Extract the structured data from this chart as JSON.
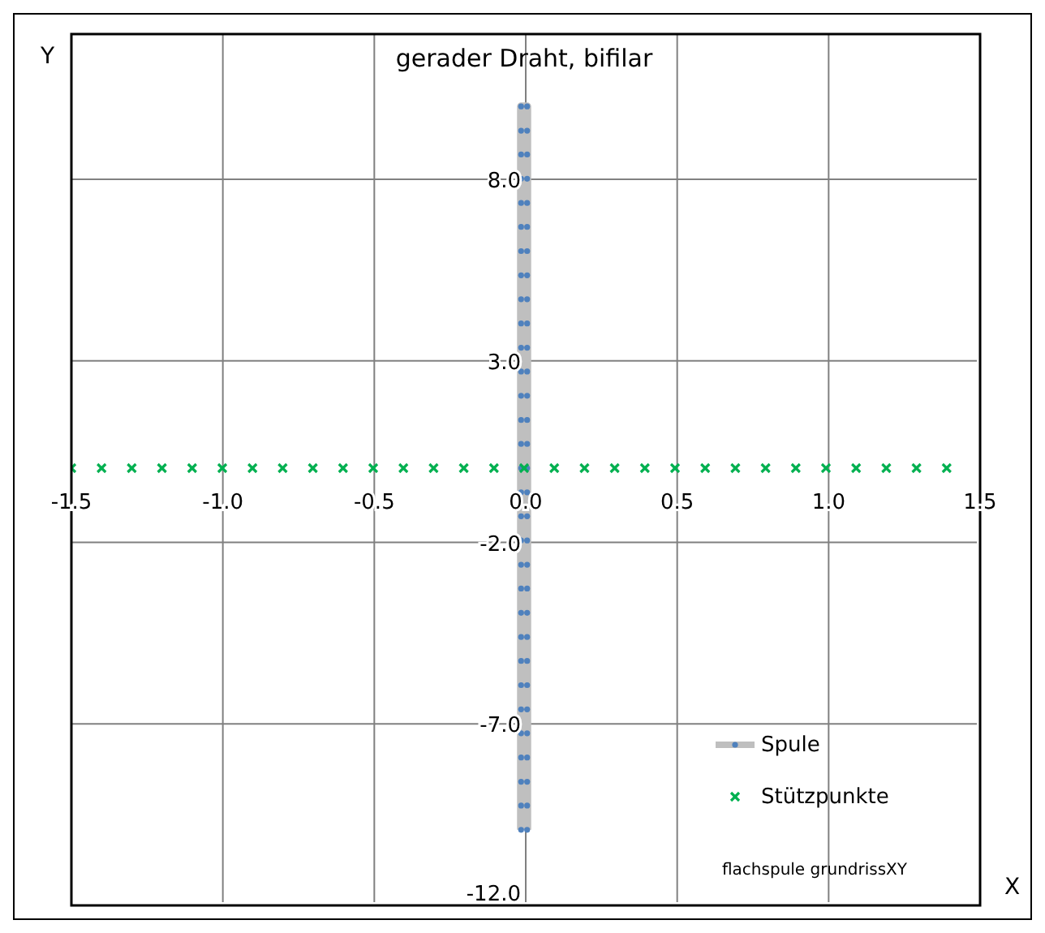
{
  "chart_data": {
    "type": "scatter",
    "title": "gerader Draht, bifilar",
    "xlabel": "X",
    "ylabel": "Y",
    "xlim": [
      -1.5,
      1.5
    ],
    "xticks": [
      {
        "value": -1.5,
        "label": "-1.5"
      },
      {
        "value": -1,
        "label": "-1.0"
      },
      {
        "value": -0.5,
        "label": "-0.5"
      },
      {
        "value": 0,
        "label": "0.0"
      },
      {
        "value": 0.5,
        "label": "0.5"
      },
      {
        "value": 1,
        "label": "1.0"
      },
      {
        "value": 1.5,
        "label": "1.5"
      }
    ],
    "ylim": [
      -12,
      12
    ],
    "yticks": [
      {
        "value": -12,
        "label": "-12.0"
      },
      {
        "value": -7,
        "label": "-7.0"
      },
      {
        "value": -2,
        "label": "-2.0"
      },
      {
        "value": 3,
        "label": "3.0"
      },
      {
        "value": 8,
        "label": "8.0"
      }
    ],
    "grid": true,
    "legend": "bottom right",
    "annotations": [
      "flachspule grundrissXY"
    ],
    "series": [
      {
        "name": "Spule",
        "type": "line",
        "marker": "circle",
        "color": "#4f81bd",
        "x": [
          -0.01,
          -0.01,
          -0.01,
          -0.01,
          -0.01,
          -0.01,
          -0.01,
          -0.01,
          -0.01,
          -0.01,
          -0.01,
          -0.01,
          -0.01,
          -0.01,
          -0.01,
          -0.01,
          -0.01,
          -0.01,
          -0.01,
          -0.01,
          -0.01,
          -0.01,
          -0.01,
          -0.01,
          -0.01,
          -0.01,
          -0.01,
          -0.01,
          -0.01,
          -0.01,
          -0.01,
          0.01,
          0.01,
          0.01,
          0.01,
          0.01,
          0.01,
          0.01,
          0.01,
          0.01,
          0.01,
          0.01,
          0.01,
          0.01,
          0.01,
          0.01,
          0.01,
          0.01,
          0.01,
          0.01,
          0.01,
          0.01,
          0.01,
          0.01,
          0.01,
          0.01,
          0.01,
          0.01,
          0.01,
          0.01,
          0.01,
          0.01
        ],
        "values": [
          -10,
          -9.33,
          -8.67,
          -8,
          -7.33,
          -6.67,
          -6,
          -5.33,
          -4.67,
          -4,
          -3.33,
          -2.67,
          -2,
          -1.33,
          -0.67,
          0,
          0.67,
          1.33,
          2,
          2.67,
          3.33,
          4,
          4.67,
          5.33,
          6,
          6.67,
          7.33,
          8,
          8.67,
          9.33,
          10,
          10,
          9.33,
          8.67,
          8,
          7.33,
          6.67,
          6,
          5.33,
          4.67,
          4,
          3.33,
          2.67,
          2,
          1.33,
          0.67,
          0,
          -0.67,
          -1.33,
          -2,
          -2.67,
          -3.33,
          -4,
          -4.67,
          -5.33,
          -6,
          -6.67,
          -7.33,
          -8,
          -8.67,
          -9.33,
          -10
        ]
      },
      {
        "name": "Stützpunkte",
        "type": "scatter",
        "marker": "cross",
        "color": "#00b050",
        "x": [
          -1.5,
          -1.4,
          -1.3,
          -1.2,
          -1.1,
          -1,
          -0.9,
          -0.8,
          -0.7,
          -0.6,
          -0.5,
          -0.4,
          -0.3,
          -0.2,
          -0.1,
          0,
          0.1,
          0.2,
          0.3,
          0.4,
          0.5,
          0.6,
          0.7,
          0.8,
          0.9,
          1,
          1.1,
          1.2,
          1.3,
          1.4
        ],
        "values": [
          0,
          0,
          0,
          0,
          0,
          0,
          0,
          0,
          0,
          0,
          0,
          0,
          0,
          0,
          0,
          0,
          0,
          0,
          0,
          0,
          0,
          0,
          0,
          0,
          0,
          0,
          0,
          0,
          0,
          0
        ]
      }
    ]
  }
}
